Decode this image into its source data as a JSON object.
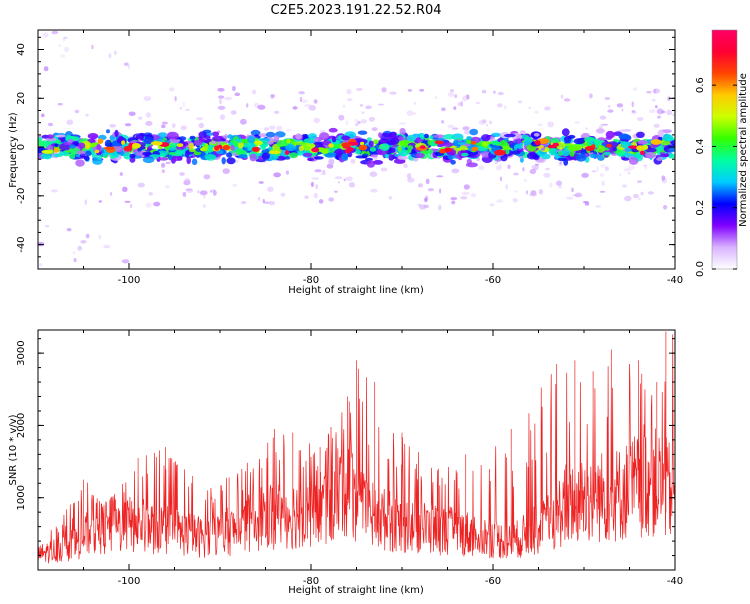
{
  "title": "C2E5.2023.191.22.52.R04",
  "chart_data": [
    {
      "type": "heatmap",
      "xlabel": "Height of straight line (km)",
      "ylabel": "Frequency (Hz)",
      "xlim": [
        -110,
        -40
      ],
      "ylim": [
        -50,
        48
      ],
      "xticks": [
        -100,
        -80,
        -60,
        -40
      ],
      "yticks": [
        -40,
        -20,
        0,
        20,
        40
      ],
      "band": {
        "center_hz": 0,
        "halfwidth_hz": 8
      },
      "colorbar": {
        "label": "Normalized spectral amplitude",
        "range": [
          0,
          0.78
        ],
        "ticks": [
          0.0,
          0.2,
          0.4,
          0.6
        ],
        "tick_labels": [
          "0.0",
          "0.2",
          "0.4",
          "0.6"
        ],
        "colormap": [
          "#ffffff",
          "#d9b3ff",
          "#8000ff",
          "#0000ff",
          "#00ccff",
          "#00ffa0",
          "#33ff00",
          "#ccff00",
          "#ffcc00",
          "#ff4400",
          "#ff0033",
          "#ff0066"
        ]
      }
    },
    {
      "type": "line",
      "color": "#ee2222",
      "xlabel": "Height of straight line (km)",
      "ylabel": "SNR (10 * v/v)",
      "xlim": [
        -110,
        -40
      ],
      "ylim": [
        0,
        3320
      ],
      "xticks": [
        -100,
        -80,
        -60,
        -40
      ],
      "yticks": [
        1000,
        2000,
        3000
      ],
      "envelope": {
        "x": [
          -110,
          -106,
          -104,
          -100,
          -96,
          -92,
          -88,
          -85,
          -82,
          -78,
          -76,
          -74,
          -70,
          -66,
          -62,
          -58,
          -54,
          -52,
          -50,
          -46,
          -43,
          -41,
          -40
        ],
        "y": [
          300,
          500,
          800,
          900,
          800,
          650,
          800,
          1100,
          1100,
          1300,
          1800,
          1100,
          900,
          800,
          700,
          550,
          900,
          1300,
          1400,
          1500,
          1800,
          1600,
          1500
        ]
      },
      "peaks": {
        "x": [
          -108,
          -105,
          -102,
          -99,
          -96,
          -93,
          -89,
          -84,
          -82,
          -79,
          -76,
          -75,
          -73,
          -70,
          -66,
          -63,
          -58,
          -53,
          -51,
          -49,
          -47,
          -44,
          -42,
          -41
        ],
        "y": [
          600,
          1250,
          1000,
          1550,
          1700,
          1300,
          1280,
          1950,
          1900,
          1700,
          2400,
          2900,
          2600,
          1900,
          1400,
          1600,
          1950,
          2850,
          2900,
          2750,
          3050,
          2900,
          2600,
          3300
        ]
      }
    }
  ]
}
